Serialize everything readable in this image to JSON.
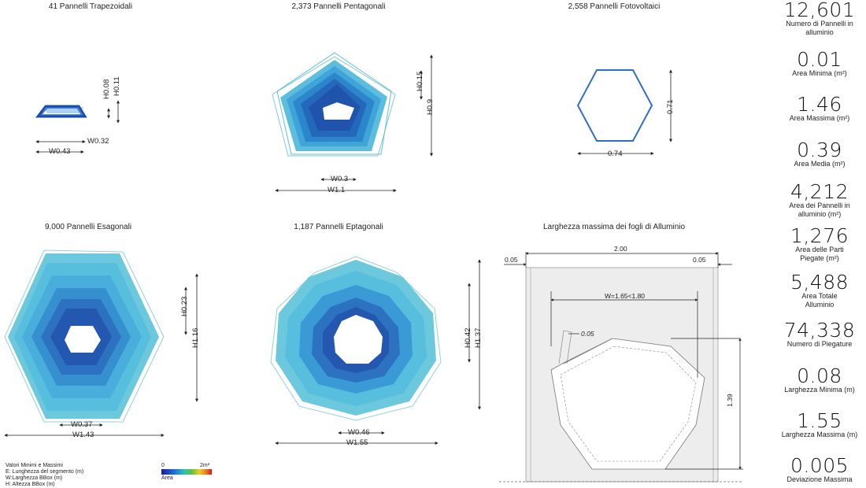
{
  "panels": {
    "trapezoid": {
      "title": "41 Pannelli Trapezoidali",
      "h1": "H0.08",
      "h2": "H0.11",
      "w1": "W0.32",
      "w2": "W0.43"
    },
    "pentagon": {
      "title": "2,373 Pannelli Pentagonali",
      "h1": "H0.15",
      "h2": "H0.9",
      "w1": "W0.3",
      "w2": "W1.1"
    },
    "photovoltaic": {
      "title": "2,558 Pannelli Fotovoltaici",
      "h": "0.71",
      "w": "0.74"
    },
    "hexagon": {
      "title": "9,000 Pannelli Esagonali",
      "h1": "H0.23",
      "h2": "H1.16",
      "w1": "W0.37",
      "w2": "W1.43"
    },
    "heptagon": {
      "title": "1,187 Pannelli Eptagonali",
      "h1": "H0.42",
      "h2": "H1.37",
      "w1": "W0.46",
      "w2": "W1.55"
    },
    "sheet": {
      "title": "Larghezza massima dei fogli di Alluminio",
      "left_margin": "0.05",
      "total_width": "2.00",
      "right_margin": "0.05",
      "usable_width": "W=1.65<1.80",
      "fold": "0.05",
      "height": "1.39"
    }
  },
  "stats": [
    {
      "value": "12,601",
      "label": "Numero di Pannelli in alluminio"
    },
    {
      "value": "0.01",
      "label": "Area Minima (m²)"
    },
    {
      "value": "1.46",
      "label": "Area Massima (m²)"
    },
    {
      "value": "0.39",
      "label": "Area Media (m²)"
    },
    {
      "value": "4,212",
      "label": "Area dei Pannelli in alluminio (m²)"
    },
    {
      "value": "1,276",
      "label": "Area delle Parti Piegate (m²)"
    },
    {
      "value": "5,488",
      "label": "Area Totale Alluminio"
    },
    {
      "value": "74,338",
      "label": "Numero di Piegature"
    },
    {
      "value": "0.08",
      "label": "Larghezza Minima (m)"
    },
    {
      "value": "1.55",
      "label": "Larghezza Massima (m)"
    },
    {
      "value": "0.005",
      "label": "Deviazione Massima"
    }
  ],
  "legend": {
    "lines": [
      "Valori Minimi e Massimi",
      "E: Lunghezza del segmento (m)",
      "W:Larghezza BBox (m)",
      "H: Altezza BBox (m)"
    ],
    "min": "0",
    "max": "2m²",
    "label": "Area"
  }
}
